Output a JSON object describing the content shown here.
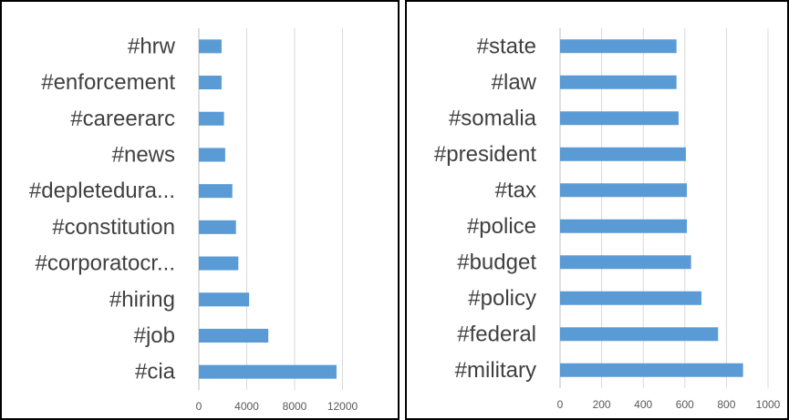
{
  "chart_data": [
    {
      "type": "bar",
      "orientation": "horizontal",
      "categories": [
        "#hrw",
        "#enforcement",
        "#careerarc",
        "#news",
        "#depletedura...",
        "#constitution",
        "#corporatocr...",
        "#hiring",
        "#job",
        "#cia"
      ],
      "values": [
        1900,
        1900,
        2100,
        2200,
        2800,
        3100,
        3300,
        4200,
        5800,
        11500
      ],
      "xlim": [
        0,
        16000
      ],
      "xticks": [
        0,
        4000,
        8000,
        12000
      ],
      "grid": true,
      "bar_color": "#5b9bd5"
    },
    {
      "type": "bar",
      "orientation": "horizontal",
      "categories": [
        "#state",
        "#law",
        "#somalia",
        "#president",
        "#tax",
        "#police",
        "#budget",
        "#policy",
        "#federal",
        "#military"
      ],
      "values": [
        560,
        560,
        570,
        605,
        610,
        610,
        630,
        680,
        760,
        880
      ],
      "xlim": [
        0,
        1000
      ],
      "xticks": [
        0,
        200,
        400,
        600,
        800,
        1000
      ],
      "grid": true,
      "bar_color": "#5b9bd5"
    }
  ]
}
